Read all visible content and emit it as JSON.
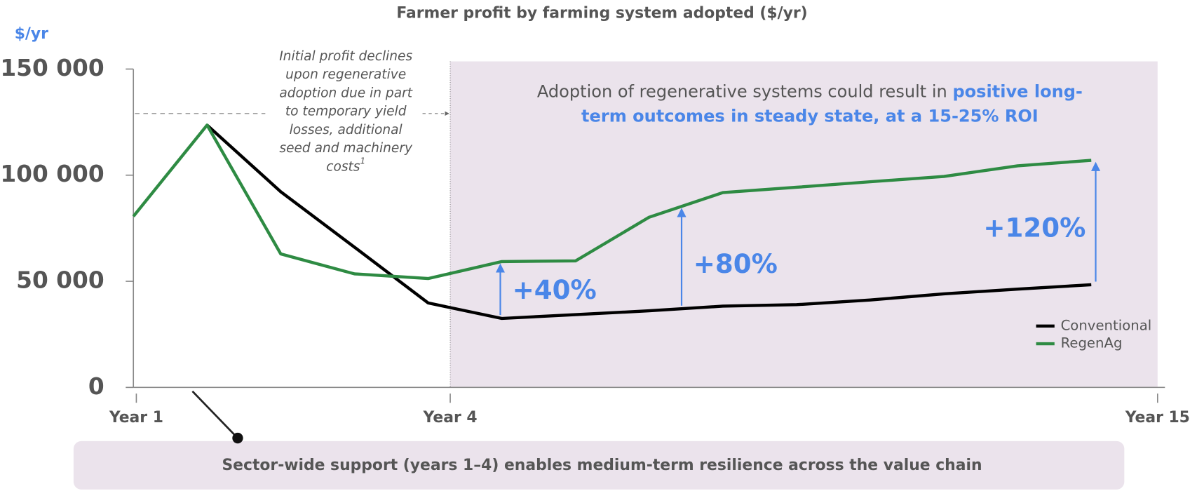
{
  "chart_data": {
    "type": "line",
    "title": "Farmer profit by farming system adopted ($/yr)",
    "ylabel": "$/yr",
    "x": [
      0,
      1,
      2,
      3,
      4,
      5,
      6,
      7,
      8,
      9,
      10,
      11,
      12,
      13
    ],
    "xlim": [
      0,
      14
    ],
    "xticks": [
      {
        "value": 0.04,
        "label": "Year 1"
      },
      {
        "value": 4.3,
        "label": "Year 4"
      },
      {
        "value": 13.9,
        "label": "Year 15"
      }
    ],
    "ylim": [
      0,
      150000
    ],
    "yticks": [
      {
        "value": 0,
        "label": "0"
      },
      {
        "value": 50000,
        "label": "50 000"
      },
      {
        "value": 100000,
        "label": "100 000"
      },
      {
        "value": 150000,
        "label": "150 000"
      }
    ],
    "legend": "lower right",
    "series": [
      {
        "name": "Conventional",
        "color": "#000000",
        "values": [
          null,
          123600,
          92200,
          66100,
          39800,
          32500,
          34300,
          36100,
          38300,
          39000,
          41200,
          44100,
          46300,
          48400
        ]
      },
      {
        "name": "RegenAg",
        "color": "#2e8b43",
        "values": [
          80600,
          123600,
          62900,
          53500,
          51300,
          59300,
          59600,
          80200,
          91800,
          94300,
          96900,
          99400,
          104400,
          107000
        ]
      }
    ],
    "note_lines": [
      "Initial profit declines",
      "upon regenerative",
      "adoption due in part",
      "to temporary yield",
      "losses, additional",
      "seed and machinery",
      "costs"
    ],
    "note_sup": "1",
    "callout": {
      "text": "Adoption of regenerative systems could result in",
      "highlight_1": "positive long-",
      "highlight_2": "term outcomes in steady state, at a 15-25% ROI"
    },
    "gains": [
      "+40%",
      "+80%",
      "+120%"
    ],
    "footer": "Sector-wide support (years 1–4) enables medium-term resilience across the value chain"
  }
}
